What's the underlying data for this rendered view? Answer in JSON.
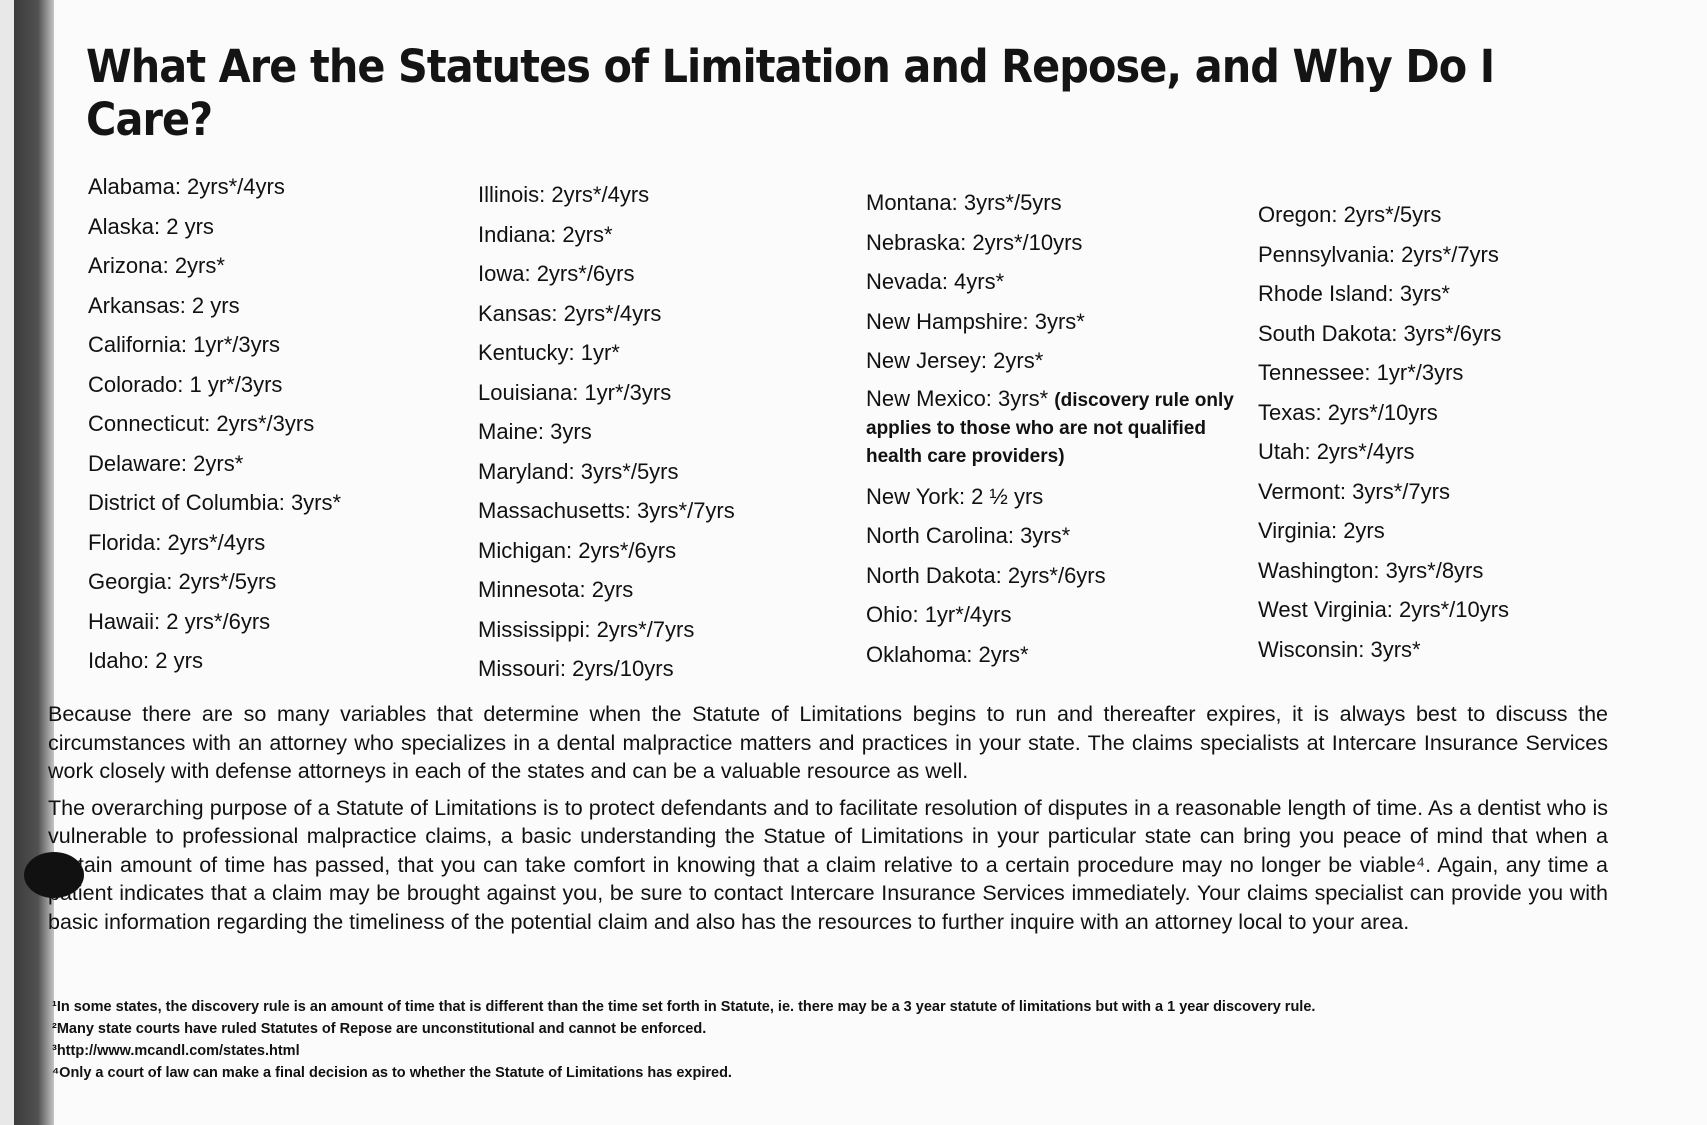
{
  "title": "What Are the Statutes of Limitation and Repose, and Why Do I Care?",
  "columns": [
    [
      "Alabama: 2yrs*/4yrs",
      "Alaska: 2 yrs",
      "Arizona: 2yrs*",
      "Arkansas: 2 yrs",
      "California: 1yr*/3yrs",
      "Colorado: 1 yr*/3yrs",
      "Connecticut: 2yrs*/3yrs",
      "Delaware: 2yrs*",
      "District of Columbia: 3yrs*",
      "Florida: 2yrs*/4yrs",
      "Georgia: 2yrs*/5yrs",
      "Hawaii: 2 yrs*/6yrs",
      "Idaho: 2 yrs"
    ],
    [
      "Illinois: 2yrs*/4yrs",
      "Indiana: 2yrs*",
      "Iowa: 2yrs*/6yrs",
      "Kansas: 2yrs*/4yrs",
      "Kentucky: 1yr*",
      "Louisiana: 1yr*/3yrs",
      "Maine: 3yrs",
      "Maryland: 3yrs*/5yrs",
      "Massachusetts: 3yrs*/7yrs",
      "Michigan: 2yrs*/6yrs",
      "Minnesota: 2yrs",
      "Mississippi: 2yrs*/7yrs",
      "Missouri: 2yrs/10yrs"
    ],
    [
      "Montana: 3yrs*/5yrs",
      "Nebraska: 2yrs*/10yrs",
      "Nevada: 4yrs*",
      "New Hampshire: 3yrs*",
      "New Jersey: 2yrs*"
    ],
    [
      "Oregon: 2yrs*/5yrs",
      "Pennsylvania: 2yrs*/7yrs",
      "Rhode Island: 3yrs*",
      "South Dakota: 3yrs*/6yrs",
      "Tennessee: 1yr*/3yrs",
      "Texas: 2yrs*/10yrs",
      "Utah: 2yrs*/4yrs",
      "Vermont: 3yrs*/7yrs",
      "Virginia: 2yrs",
      "Washington: 3yrs*/8yrs",
      "West Virginia: 2yrs*/10yrs",
      "Wisconsin: 3yrs*"
    ]
  ],
  "new_mexico": {
    "label": "New Mexico: 3yrs*",
    "note": "(discovery rule only applies to those who are not qualified health care providers)"
  },
  "column3_rest": [
    "New York: 2 ½ yrs",
    "North Carolina: 3yrs*",
    "North Dakota: 2yrs*/6yrs",
    "Ohio: 1yr*/4yrs",
    "Oklahoma: 2yrs*"
  ],
  "paragraphs": [
    "Because there are so many variables that determine when the Statute of Limitations begins to run and thereafter expires, it is always best to discuss the circumstances with an attorney who specializes in a dental malpractice matters and practices in your state. The claims specialists at Intercare Insurance Services work closely with defense attorneys in each of the states and can be a valuable resource as well.",
    "The overarching purpose of a Statute of Limitations is to protect defendants and to facilitate resolution of disputes in a reasonable length of time. As a dentist who is vulnerable to professional malpractice claims, a basic understanding the Statue of Limitations in your particular state can bring you peace of mind that when a certain amount of time has passed, that you can take comfort in knowing that a claim relative to a certain procedure may no longer be viable⁴. Again, any time a patient indicates that a claim may be brought against you, be sure to contact Intercare Insurance Services immediately. Your claims specialist can provide you with basic information regarding the timeliness of the potential claim and also has the resources to further inquire with an attorney local to your area."
  ],
  "footnotes": [
    "¹In some states, the discovery rule is an amount of time that is different than the time set forth in Statute, ie. there may be a 3 year statute of limitations but with a 1 year discovery rule.",
    "²Many state courts have ruled Statutes of Repose are unconstitutional and cannot be enforced.",
    "³http://www.mcandl.com/states.html",
    "⁴Only a court of law can make a final decision as to whether the Statute of Limitations has expired."
  ]
}
